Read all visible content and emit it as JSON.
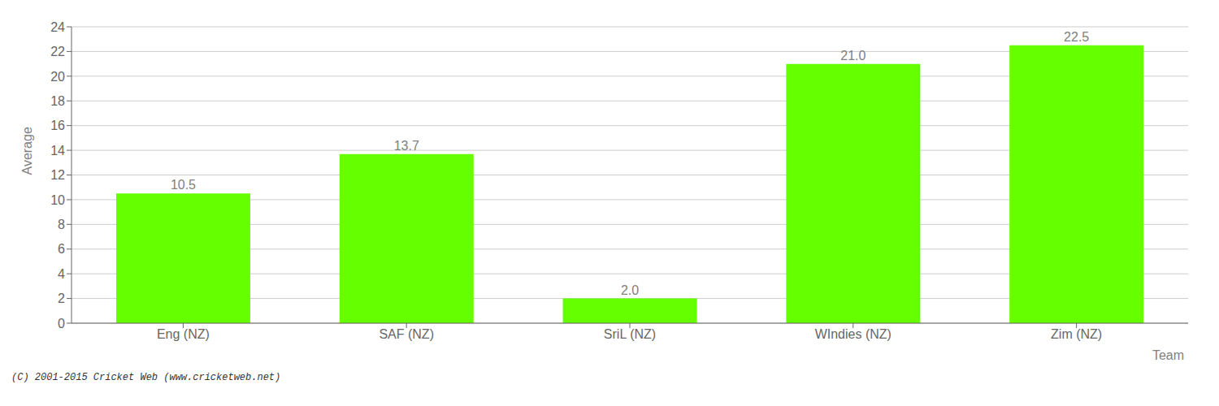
{
  "chart_data": {
    "type": "bar",
    "categories": [
      "Eng (NZ)",
      "SAF (NZ)",
      "SriL (NZ)",
      "WIndies (NZ)",
      "Zim (NZ)"
    ],
    "values": [
      10.5,
      13.7,
      2.0,
      21.0,
      22.5
    ],
    "value_labels": [
      "10.5",
      "13.7",
      "2.0",
      "21.0",
      "22.5"
    ],
    "data_labels": true,
    "color": "#66ff00",
    "xlabel": "Team",
    "ylabel": "Average",
    "ylim": [
      0,
      24
    ],
    "yticks": [
      0,
      2,
      4,
      6,
      8,
      10,
      12,
      14,
      16,
      18,
      20,
      22,
      24
    ],
    "grid": true,
    "footer": "(C) 2001-2015 Cricket Web (www.cricketweb.net)"
  }
}
